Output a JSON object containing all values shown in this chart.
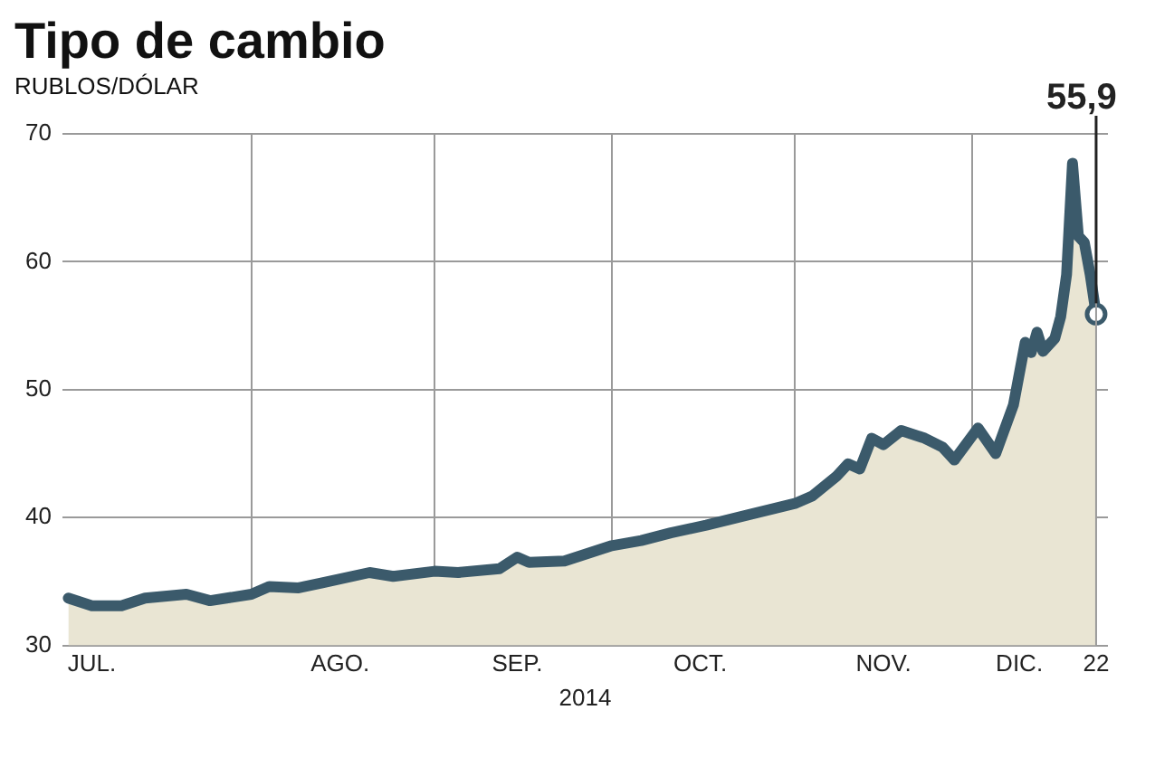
{
  "chart_data": {
    "type": "area",
    "title": "Tipo de cambio",
    "subtitle": "RUBLOS/DÓLAR",
    "xlabel": "2014",
    "x": [
      "2014-07-01",
      "2014-07-05",
      "2014-07-10",
      "2014-07-14",
      "2014-07-21",
      "2014-07-25",
      "2014-08-01",
      "2014-08-04",
      "2014-08-09",
      "2014-08-13",
      "2014-08-21",
      "2014-08-25",
      "2014-09-01",
      "2014-09-05",
      "2014-09-12",
      "2014-09-15",
      "2014-09-17",
      "2014-09-23",
      "2014-10-01",
      "2014-10-06",
      "2014-10-11",
      "2014-10-17",
      "2014-10-24",
      "2014-11-01",
      "2014-11-04",
      "2014-11-08",
      "2014-11-10",
      "2014-11-12",
      "2014-11-14",
      "2014-11-16",
      "2014-11-19",
      "2014-11-23",
      "2014-11-26",
      "2014-11-28",
      "2014-12-02",
      "2014-12-05",
      "2014-12-08",
      "2014-12-10",
      "2014-12-11",
      "2014-12-12",
      "2014-12-13",
      "2014-12-15",
      "2014-12-16",
      "2014-12-17",
      "2014-12-18",
      "2014-12-19",
      "2014-12-20",
      "2014-12-21",
      "2014-12-22"
    ],
    "series": [
      {
        "color": "#3b5a6b",
        "values": [
          33.7,
          33.1,
          33.1,
          33.7,
          34.0,
          33.5,
          34.0,
          34.6,
          34.5,
          34.9,
          35.7,
          35.4,
          35.8,
          35.7,
          36.0,
          36.9,
          36.5,
          36.6,
          37.8,
          38.2,
          38.8,
          39.4,
          40.2,
          41.1,
          41.7,
          43.2,
          44.2,
          43.8,
          46.2,
          45.7,
          46.8,
          46.2,
          45.5,
          44.5,
          47.0,
          45.0,
          48.8,
          53.7,
          52.9,
          54.5,
          53.0,
          54.0,
          55.7,
          59.0,
          67.7,
          62.0,
          61.5,
          59.0,
          55.9
        ]
      }
    ],
    "xlim": [
      "2014-06-30",
      "2014-12-24"
    ],
    "xticks": [
      {
        "value": "2014-07-05",
        "label": "JUL."
      },
      {
        "value": "2014-08-01",
        "label": null
      },
      {
        "value": "2014-08-16",
        "label": "AGO."
      },
      {
        "value": "2014-09-01",
        "label": null
      },
      {
        "value": "2014-09-15",
        "label": "SEP."
      },
      {
        "value": "2014-10-01",
        "label": null
      },
      {
        "value": "2014-10-16",
        "label": "OCT."
      },
      {
        "value": "2014-11-01",
        "label": null
      },
      {
        "value": "2014-11-16",
        "label": "NOV."
      },
      {
        "value": "2014-12-01",
        "label": null
      },
      {
        "value": "2014-12-09",
        "label": "DIC."
      },
      {
        "value": "2014-12-22",
        "label": "22"
      }
    ],
    "ylim": [
      30,
      70
    ],
    "yticks": [
      30,
      40,
      50,
      60,
      70
    ],
    "ref_lines": [
      {
        "axis": "x",
        "value": "2014-12-22",
        "label": null
      }
    ],
    "annotations": [
      "55,9"
    ],
    "grid": true,
    "legend": false,
    "marker": "none",
    "line_style": "solid"
  }
}
